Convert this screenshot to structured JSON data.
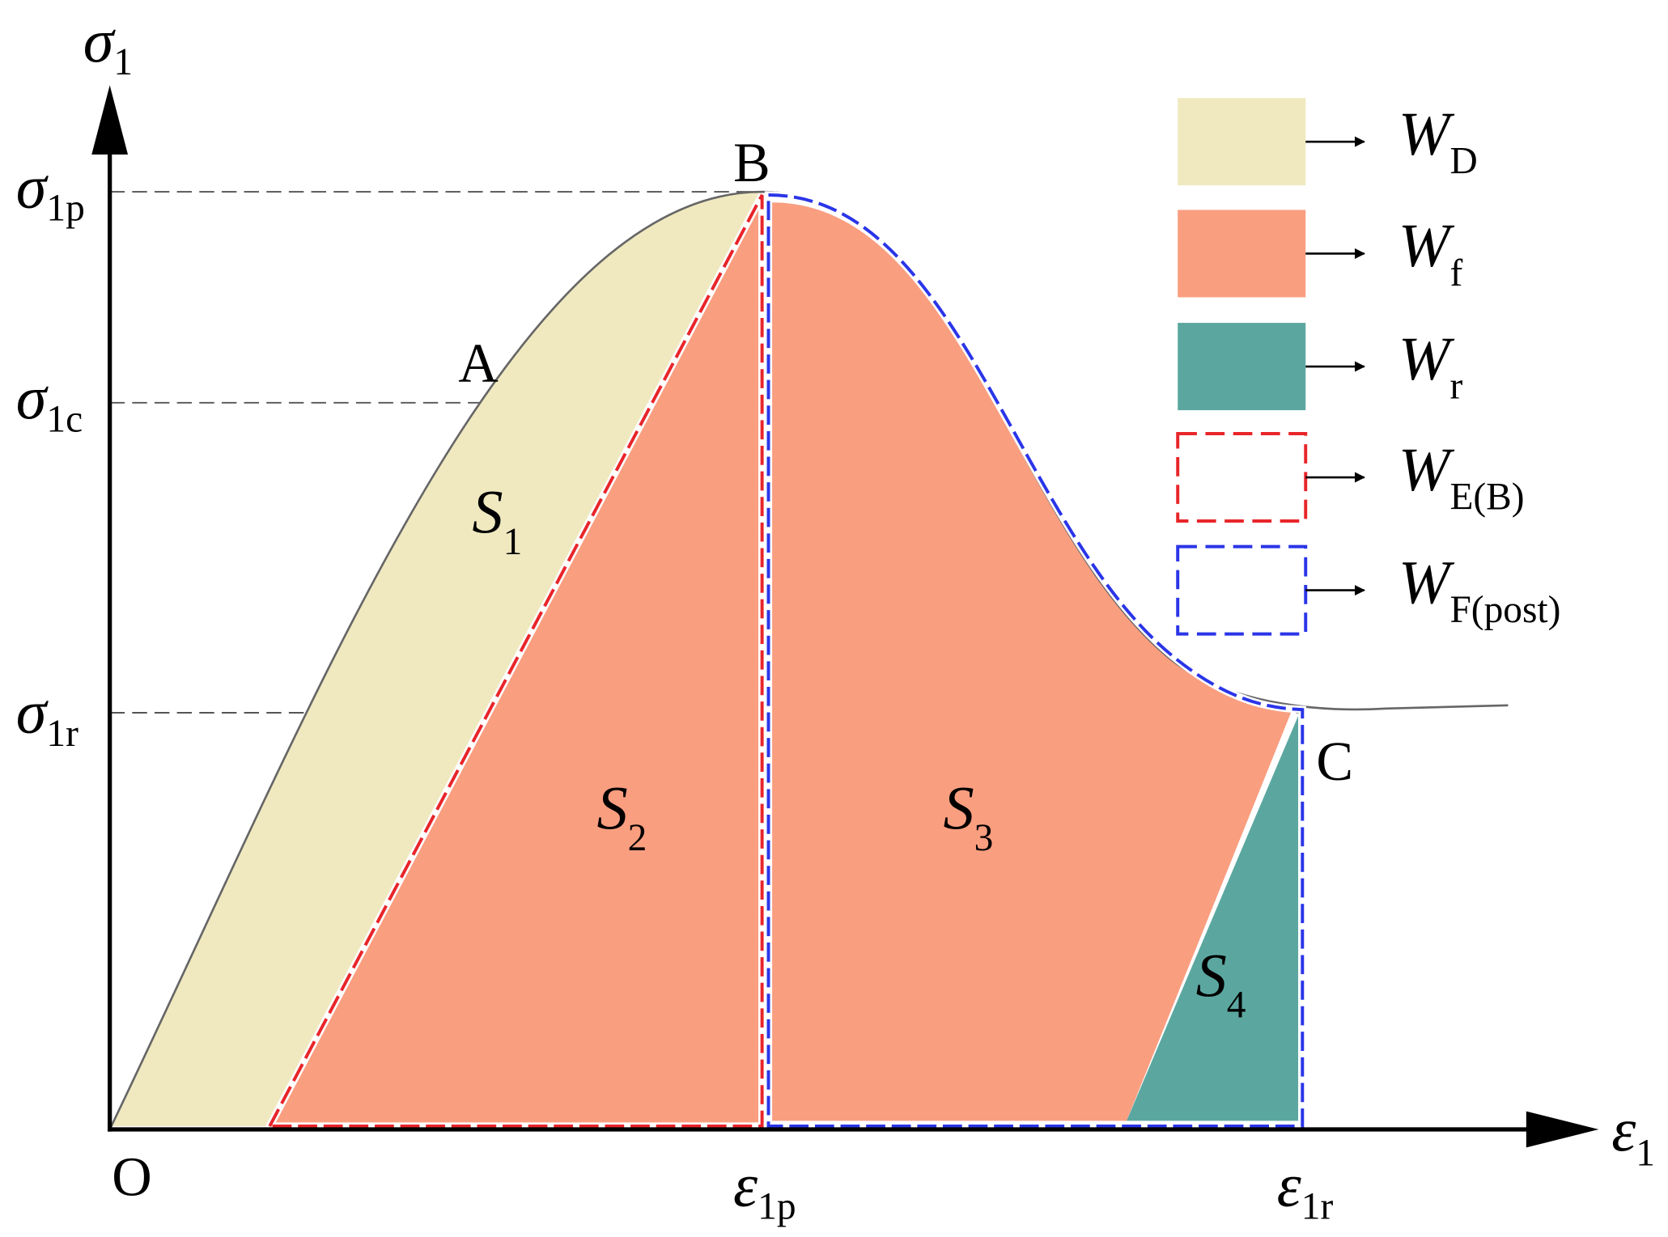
{
  "axes": {
    "y_label": {
      "main": "σ",
      "sub": "1"
    },
    "x_label": {
      "main": "ε",
      "sub": "1"
    }
  },
  "y_ticks": [
    {
      "main": "σ",
      "sub": "1p"
    },
    {
      "main": "σ",
      "sub": "1c"
    },
    {
      "main": "σ",
      "sub": "1r"
    }
  ],
  "x_ticks": [
    {
      "main": "ε",
      "sub": "1p"
    },
    {
      "main": "ε",
      "sub": "1r"
    }
  ],
  "points": [
    "O",
    "A",
    "B",
    "C"
  ],
  "regions": [
    {
      "main": "S",
      "sub": "1"
    },
    {
      "main": "S",
      "sub": "2"
    },
    {
      "main": "S",
      "sub": "3"
    },
    {
      "main": "S",
      "sub": "4"
    }
  ],
  "legend": [
    {
      "main": "W",
      "sub": "D"
    },
    {
      "main": "W",
      "sub": "f"
    },
    {
      "main": "W",
      "sub": "r"
    },
    {
      "main": "W",
      "sub": "E(B)"
    },
    {
      "main": "W",
      "sub": "F(post)"
    }
  ]
}
